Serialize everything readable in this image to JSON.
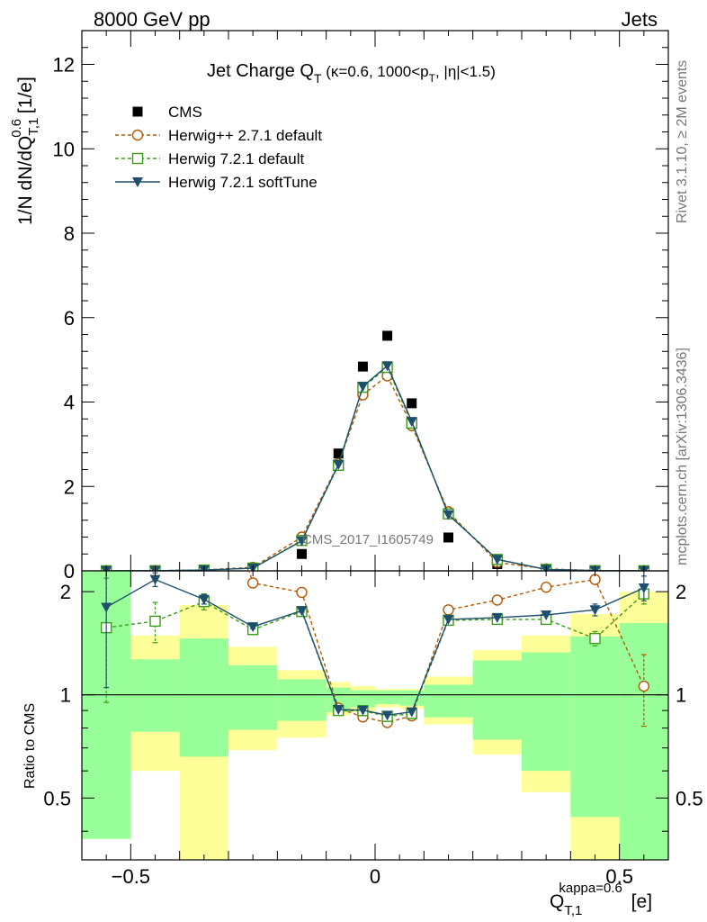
{
  "header": {
    "left": "8000 GeV pp",
    "right": "Jets",
    "rivet": "Rivet 3.1.10, ≥ 2M events",
    "mcplots": "mcplots.cern.ch [arXiv:1306.3436]",
    "watermark": "CMS_2017_I1605749"
  },
  "chart_data": {
    "type": "line",
    "title": {
      "main": "Jet Charge Q",
      "sub": "T",
      "rest_a": " (κ=0.6, 1000<p",
      "rest_sub": "T",
      "rest_b": ", |η|<1.5)"
    },
    "ylabel": {
      "a": "1/N dN/dQ",
      "sub": "T,1",
      "sup": "0.6",
      "b": " [1/e]"
    },
    "xlabel": {
      "a": "Q",
      "sub": "T,1",
      "sup": "kappa=0.6",
      "b": " [e]"
    },
    "ratio_ylabel": "Ratio to CMS",
    "xlim": [
      -0.6,
      0.6
    ],
    "ylim": [
      0,
      12.8
    ],
    "ratio_ylim": [
      0.33,
      2.3
    ],
    "ratio_log_scale": true,
    "x_tick_labels": [
      "−0.5",
      "0",
      "0.5"
    ],
    "x_ticks": [
      -0.5,
      0,
      0.5
    ],
    "y_tick_labels": [
      "0",
      "2",
      "4",
      "6",
      "8",
      "10",
      "12"
    ],
    "y_ticks": [
      0,
      2,
      4,
      6,
      8,
      10,
      12
    ],
    "ratio_tick_labels": [
      "0.5",
      "1",
      "2"
    ],
    "ratio_ticks": [
      0.5,
      1,
      2
    ],
    "x": [
      -0.55,
      -0.45,
      -0.35,
      -0.25,
      -0.15,
      -0.075,
      -0.025,
      0.025,
      0.075,
      0.15,
      0.25,
      0.35,
      0.45,
      0.55
    ],
    "bin_edges": [
      -0.6,
      -0.5,
      -0.4,
      -0.3,
      -0.2,
      -0.1,
      -0.05,
      0,
      0.05,
      0.1,
      0.2,
      0.3,
      0.4,
      0.5,
      0.6
    ],
    "series": [
      {
        "name": "CMS",
        "color": "#000000",
        "marker": "filled-square",
        "values": [
          0.001,
          0.002,
          0.01,
          0.04,
          0.4,
          2.78,
          4.84,
          5.57,
          3.97,
          0.79,
          0.16,
          0.02,
          0.003,
          0.001
        ],
        "band_stat": [
          [
            0.38,
            2.3
          ],
          [
            0.78,
            1.27
          ],
          [
            0.66,
            1.46
          ],
          [
            0.79,
            1.22
          ],
          [
            0.84,
            1.11
          ],
          [
            0.89,
            1.05
          ],
          [
            0.92,
            1.03
          ],
          [
            0.94,
            1.03
          ],
          [
            0.93,
            1.03
          ],
          [
            0.86,
            1.07
          ],
          [
            0.74,
            1.26
          ],
          [
            0.6,
            1.33
          ],
          [
            0.44,
            1.48
          ],
          [
            0.33,
            1.62
          ]
        ],
        "band_total": [
          [
            0.38,
            2.3
          ],
          [
            0.6,
            1.49
          ],
          [
            0.33,
            1.83
          ],
          [
            0.69,
            1.38
          ],
          [
            0.75,
            1.18
          ],
          [
            0.87,
            1.09
          ],
          [
            0.89,
            1.06
          ],
          [
            0.92,
            1.04
          ],
          [
            0.91,
            1.04
          ],
          [
            0.82,
            1.13
          ],
          [
            0.67,
            1.35
          ],
          [
            0.52,
            1.49
          ],
          [
            0.3,
            1.72
          ],
          [
            0.33,
            2.0
          ]
        ]
      },
      {
        "name": "Herwig++ 2.7.1 default",
        "color": "#b05a00",
        "marker": "open-circle",
        "dashed": true,
        "values": [
          0.0018,
          0.004,
          0.02,
          0.085,
          0.8,
          2.54,
          4.17,
          4.62,
          3.44,
          1.4,
          0.2,
          0.047,
          0.007,
          0.0011
        ],
        "ratio": [
          null,
          null,
          null,
          2.12,
          1.99,
          0.915,
          0.862,
          0.83,
          0.868,
          1.77,
          1.89,
          2.06,
          2.17,
          1.06
        ],
        "ratio_err": [
          null,
          null,
          null,
          null,
          null,
          null,
          null,
          null,
          null,
          null,
          null,
          null,
          0.06,
          0.25
        ]
      },
      {
        "name": "Herwig 7.2.1 default",
        "color": "#3a9a1a",
        "marker": "open-square",
        "dashed": true,
        "values": [
          0.0017,
          0.0035,
          0.019,
          0.066,
          0.72,
          2.5,
          4.35,
          4.82,
          3.5,
          1.35,
          0.27,
          0.034,
          0.0047,
          0.002
        ],
        "ratio": [
          1.57,
          1.64,
          1.87,
          1.55,
          1.75,
          0.9,
          0.899,
          0.865,
          0.882,
          1.65,
          1.66,
          1.66,
          1.46,
          1.97
        ],
        "ratio_err": [
          0.62,
          0.22,
          0.1,
          0.03,
          0.02,
          null,
          null,
          null,
          null,
          null,
          null,
          null,
          0.07,
          0.13
        ]
      },
      {
        "name": "Herwig 7.2.1 softTune",
        "color": "#1e4f6e",
        "marker": "filled-triangle-down",
        "dashed": false,
        "values": [
          0.0018,
          0.0042,
          0.019,
          0.064,
          0.71,
          2.52,
          4.37,
          4.86,
          3.54,
          1.33,
          0.27,
          0.034,
          0.0052,
          0.0021
        ],
        "ratio": [
          1.8,
          2.17,
          1.9,
          1.58,
          1.76,
          0.906,
          0.902,
          0.872,
          0.892,
          1.66,
          1.68,
          1.71,
          1.77,
          2.05
        ],
        "ratio_err": [
          0.75,
          0.1,
          0.06,
          0.02,
          0.02,
          null,
          null,
          null,
          null,
          null,
          null,
          null,
          0.07,
          0.17
        ]
      }
    ]
  }
}
